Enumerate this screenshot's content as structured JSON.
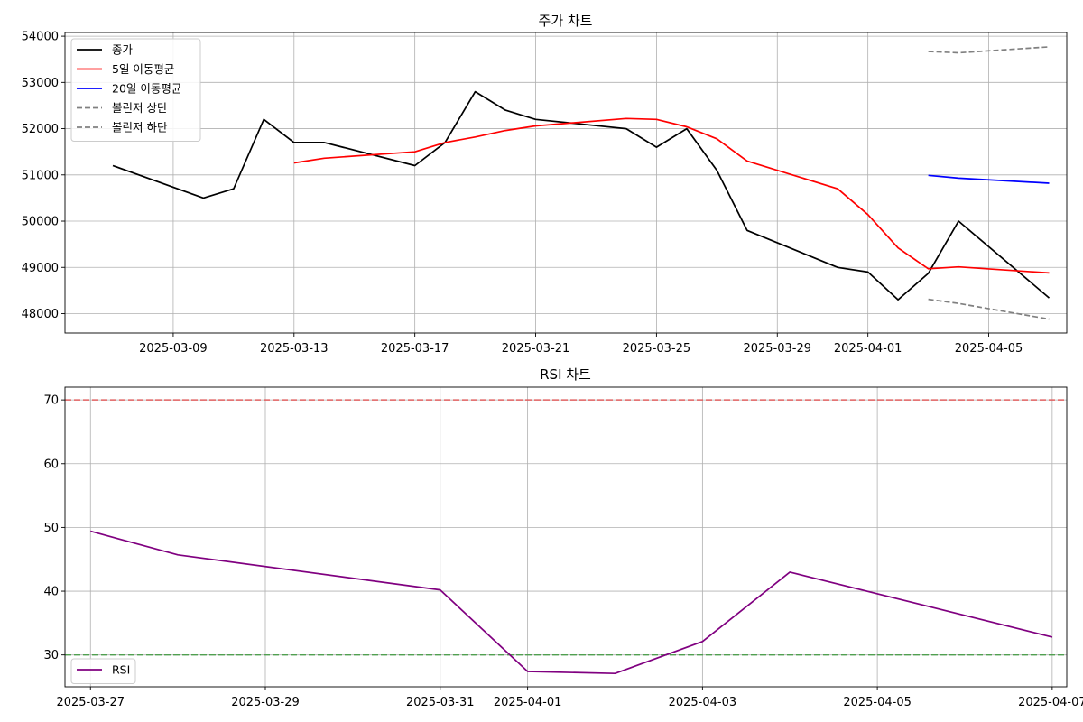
{
  "chart_data": [
    {
      "type": "line",
      "title": "주가 차트",
      "xlabel": "",
      "ylabel": "",
      "xlim": [
        "2025-03-05T10:00",
        "2025-04-07T14:00"
      ],
      "ylim": [
        47580,
        54080
      ],
      "xticks": [
        "2025-03-09",
        "2025-03-13",
        "2025-03-17",
        "2025-03-21",
        "2025-03-25",
        "2025-03-29",
        "2025-04-01",
        "2025-04-05"
      ],
      "yticks": [
        48000,
        49000,
        50000,
        51000,
        52000,
        53000,
        54000
      ],
      "grid": true,
      "legend_position": "upper-left",
      "series": [
        {
          "name": "종가",
          "color": "#000000",
          "dash": "solid",
          "points": [
            [
              "2025-03-07",
              51200
            ],
            [
              "2025-03-10",
              50500
            ],
            [
              "2025-03-11",
              50700
            ],
            [
              "2025-03-12",
              52200
            ],
            [
              "2025-03-13",
              51700
            ],
            [
              "2025-03-14",
              51700
            ],
            [
              "2025-03-17",
              51200
            ],
            [
              "2025-03-18",
              51700
            ],
            [
              "2025-03-19",
              52800
            ],
            [
              "2025-03-20",
              52400
            ],
            [
              "2025-03-21",
              52200
            ],
            [
              "2025-03-24",
              52000
            ],
            [
              "2025-03-25",
              51600
            ],
            [
              "2025-03-26",
              52000
            ],
            [
              "2025-03-27",
              51100
            ],
            [
              "2025-03-28",
              49800
            ],
            [
              "2025-03-31",
              49000
            ],
            [
              "2025-04-01",
              48900
            ],
            [
              "2025-04-02",
              48300
            ],
            [
              "2025-04-03",
              48870
            ],
            [
              "2025-04-04",
              50000
            ],
            [
              "2025-04-07",
              48340
            ]
          ]
        },
        {
          "name": "5일 이동평균",
          "color": "#ff0000",
          "dash": "solid",
          "points": [
            [
              "2025-03-13",
              51260
            ],
            [
              "2025-03-14",
              51360
            ],
            [
              "2025-03-17",
              51500
            ],
            [
              "2025-03-18",
              51700
            ],
            [
              "2025-03-19",
              51820
            ],
            [
              "2025-03-20",
              51960
            ],
            [
              "2025-03-21",
              52060
            ],
            [
              "2025-03-24",
              52220
            ],
            [
              "2025-03-25",
              52200
            ],
            [
              "2025-03-26",
              52040
            ],
            [
              "2025-03-27",
              51780
            ],
            [
              "2025-03-28",
              51300
            ],
            [
              "2025-03-31",
              50700
            ],
            [
              "2025-04-01",
              50140
            ],
            [
              "2025-04-02",
              49420
            ],
            [
              "2025-04-03",
              48970
            ],
            [
              "2025-04-04",
              49010
            ],
            [
              "2025-04-07",
              48880
            ]
          ]
        },
        {
          "name": "20일 이동평균",
          "color": "#0000ff",
          "dash": "solid",
          "points": [
            [
              "2025-04-03",
              50990
            ],
            [
              "2025-04-04",
              50930
            ],
            [
              "2025-04-07",
              50820
            ]
          ]
        },
        {
          "name": "볼린저 상단",
          "color": "#808080",
          "dash": "dashed",
          "points": [
            [
              "2025-04-03",
              53670
            ],
            [
              "2025-04-04",
              53640
            ],
            [
              "2025-04-07",
              53770
            ]
          ]
        },
        {
          "name": "볼린저 하단",
          "color": "#808080",
          "dash": "dashed",
          "points": [
            [
              "2025-04-03",
              48310
            ],
            [
              "2025-04-04",
              48220
            ],
            [
              "2025-04-07",
              47880
            ]
          ]
        }
      ]
    },
    {
      "type": "line",
      "title": "RSI 차트",
      "xlabel": "",
      "ylabel": "",
      "xlim": [
        "2025-03-26T17:00",
        "2025-04-07T04:00"
      ],
      "ylim": [
        25,
        72
      ],
      "xticks": [
        "2025-03-27",
        "2025-03-29",
        "2025-03-31",
        "2025-04-01",
        "2025-04-03",
        "2025-04-05",
        "2025-04-07"
      ],
      "yticks": [
        30,
        40,
        50,
        60,
        70
      ],
      "grid": true,
      "legend_position": "lower-left",
      "reference_lines": [
        {
          "y": 70,
          "color": "#e06060",
          "dash": "dashed"
        },
        {
          "y": 30,
          "color": "#50a050",
          "dash": "dashed"
        }
      ],
      "series": [
        {
          "name": "RSI",
          "color": "#800080",
          "dash": "solid",
          "points": [
            [
              "2025-03-27",
              49.4
            ],
            [
              "2025-03-28",
              45.7
            ],
            [
              "2025-03-31",
              40.2
            ],
            [
              "2025-04-01",
              27.4
            ],
            [
              "2025-04-02",
              27.1
            ],
            [
              "2025-04-03",
              32.1
            ],
            [
              "2025-04-04",
              43.0
            ],
            [
              "2025-04-07",
              32.8
            ]
          ]
        }
      ]
    }
  ]
}
